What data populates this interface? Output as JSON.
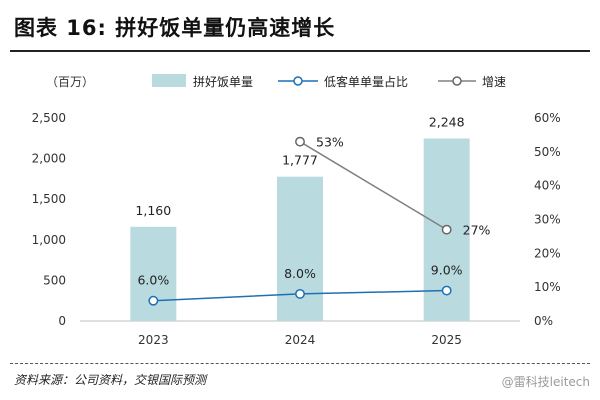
{
  "page": {
    "title": "图表 16: 拼好饭单量仍高速增长",
    "source": "资料来源：公司资料，交银国际预测",
    "watermark": "@雷科技leitech"
  },
  "chart_data": {
    "type": "bar",
    "title": "图表 16: 拼好饭单量仍高速增长",
    "unit_label": "（百万）",
    "categories": [
      "2023",
      "2024",
      "2025"
    ],
    "series": [
      {
        "name": "拼好饭单量",
        "type": "bar",
        "axis": "left",
        "values": [
          1160,
          1777,
          2248
        ],
        "value_labels": [
          "1,160",
          "1,777",
          "2,248"
        ],
        "color": "#b9dbe0"
      },
      {
        "name": "低客单单量占比",
        "type": "line",
        "axis": "right",
        "values": [
          6.0,
          8.0,
          9.0
        ],
        "value_labels": [
          "6.0%",
          "8.0%",
          "9.0%"
        ],
        "color": "#1f6fb5"
      },
      {
        "name": "增速",
        "type": "line",
        "axis": "right",
        "values": [
          null,
          53,
          27
        ],
        "value_labels": [
          "",
          "53%",
          "27%"
        ],
        "color": "#808080"
      }
    ],
    "y_left": {
      "min": 0,
      "max": 2500,
      "ticks": [
        "0",
        "500",
        "1,000",
        "1,500",
        "2,000",
        "2,500"
      ]
    },
    "y_right": {
      "min": 0,
      "max": 60,
      "ticks": [
        "0%",
        "10%",
        "20%",
        "30%",
        "40%",
        "50%",
        "60%"
      ]
    },
    "grid": false,
    "legend_position": "top"
  }
}
